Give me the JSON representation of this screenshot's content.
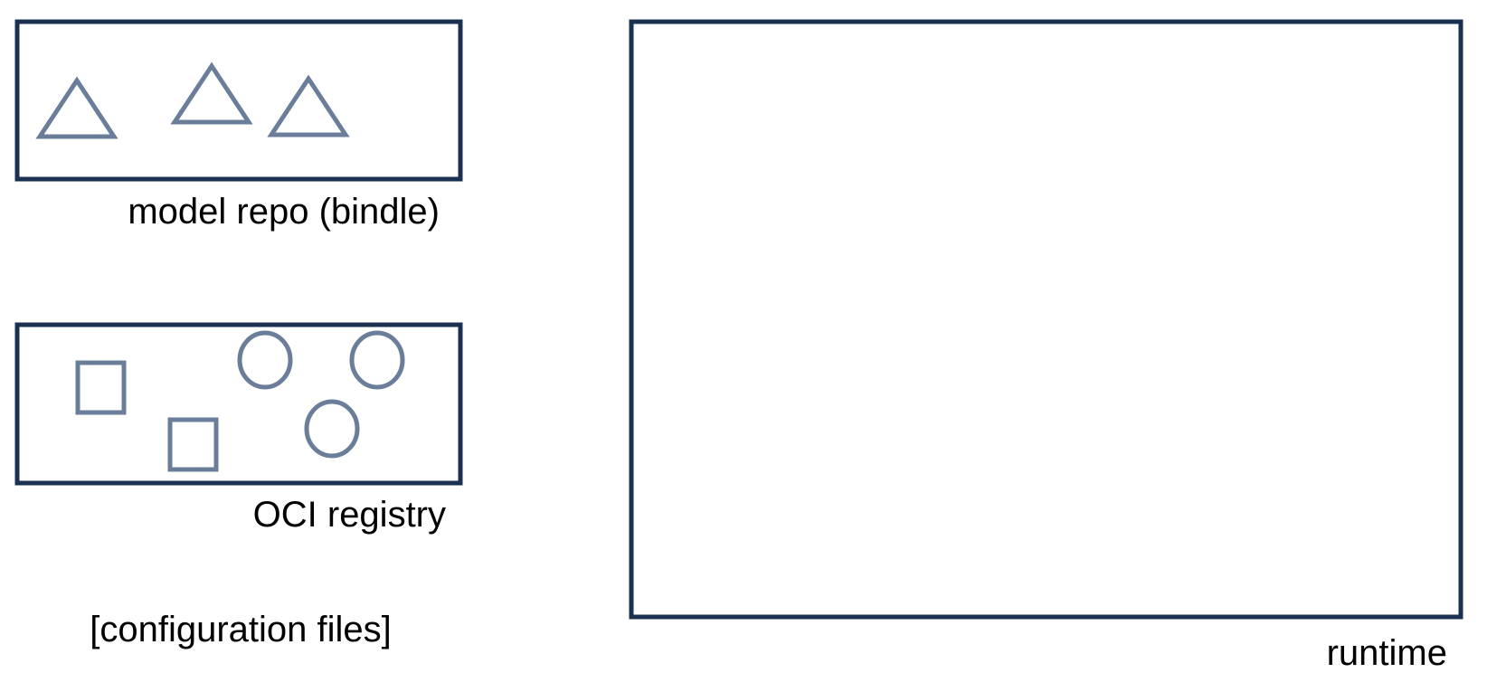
{
  "colors": {
    "frame_stroke": "#1b3152",
    "shape_stroke": "#6a7e9a",
    "background": "#ffffff",
    "text": "#000000"
  },
  "labels": {
    "model_repo": "model repo (bindle)",
    "oci_registry": "OCI registry",
    "config_files": "[configuration files]",
    "runtime": "runtime"
  },
  "shapes": {
    "model_repo_items": [
      "triangle-icon",
      "triangle-icon",
      "triangle-icon"
    ],
    "oci_registry_items": [
      "square-icon",
      "square-icon",
      "circle-icon",
      "circle-icon",
      "circle-icon"
    ]
  }
}
